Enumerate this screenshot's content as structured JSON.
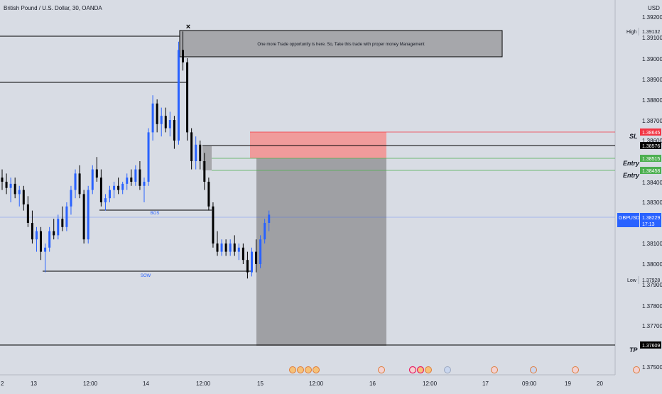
{
  "header": {
    "title": "British Pound / U.S. Dollar, 30, OANDA"
  },
  "price_axis": {
    "currency": "USD",
    "ticks": [
      "1.39200",
      "1.39100",
      "1.39000",
      "1.38900",
      "1.38800",
      "1.38700",
      "1.38600",
      "1.38400",
      "1.38300",
      "1.38100",
      "1.38000",
      "1.37900",
      "1.37800",
      "1.37700",
      "1.37500"
    ]
  },
  "time_axis": {
    "ticks": [
      "2",
      "13",
      "12:00",
      "14",
      "12:00",
      "15",
      "12:00",
      "16",
      "12:00",
      "17",
      "09:00",
      "19",
      "20"
    ]
  },
  "tags": {
    "high_label": "High",
    "high_value": "1.39132",
    "low_label": "Low",
    "low_value": "1.37928",
    "sl_value": "1.38645",
    "black_value": "1.38576",
    "entry1_value": "1.38515",
    "entry2_value": "1.38458",
    "symbol": "GBPUSD",
    "symbol_value": "1.38229",
    "countdown": "17:13",
    "tp_value": "1.37609"
  },
  "annotations": {
    "note": "One more Trade opportunity is here. So, Take this trade with proper money Management",
    "bos": "BOS",
    "sow": "SOW",
    "sl": "SL",
    "entry1": "Entry",
    "entry2": "Entry",
    "tp": "TP",
    "x_mark": "×"
  },
  "colors": {
    "background": "#d8dce4",
    "bull": "#2962ff",
    "bear": "#000000",
    "sl_zone": "#f28e8e",
    "target_zone": "#9e9fa3",
    "current_price": "#2962ff",
    "stop_tag": "#f23645",
    "entry_tag": "#4caf50"
  },
  "chart_data": {
    "type": "candlestick",
    "symbol": "GBPUSD",
    "price_range": [
      1.3745,
      1.3925
    ],
    "candles": [
      [
        1.3842,
        1.3846,
        1.3836,
        1.384
      ],
      [
        1.384,
        1.3844,
        1.3834,
        1.3837
      ],
      [
        1.3837,
        1.3842,
        1.383,
        1.3839
      ],
      [
        1.3839,
        1.3842,
        1.3832,
        1.3834
      ],
      [
        1.3834,
        1.3838,
        1.3828,
        1.3836
      ],
      [
        1.3836,
        1.3838,
        1.3826,
        1.3829
      ],
      [
        1.3829,
        1.3833,
        1.3818,
        1.382
      ],
      [
        1.382,
        1.3826,
        1.381,
        1.3812
      ],
      [
        1.3812,
        1.3818,
        1.3806,
        1.3816
      ],
      [
        1.3816,
        1.3818,
        1.3802,
        1.3806
      ],
      [
        1.3806,
        1.381,
        1.3796,
        1.3808
      ],
      [
        1.3808,
        1.3818,
        1.3806,
        1.3816
      ],
      [
        1.3816,
        1.3822,
        1.3812,
        1.3814
      ],
      [
        1.3814,
        1.3824,
        1.3812,
        1.3822
      ],
      [
        1.3822,
        1.3828,
        1.3816,
        1.3818
      ],
      [
        1.3818,
        1.383,
        1.3816,
        1.3828
      ],
      [
        1.3828,
        1.3838,
        1.3824,
        1.3836
      ],
      [
        1.3836,
        1.3846,
        1.3832,
        1.3844
      ],
      [
        1.3844,
        1.3848,
        1.3832,
        1.3834
      ],
      [
        1.3834,
        1.3836,
        1.381,
        1.3812
      ],
      [
        1.3812,
        1.3838,
        1.381,
        1.3836
      ],
      [
        1.3836,
        1.3848,
        1.3834,
        1.3846
      ],
      [
        1.3846,
        1.3852,
        1.384,
        1.3842
      ],
      [
        1.3842,
        1.3846,
        1.3828,
        1.383
      ],
      [
        1.383,
        1.3834,
        1.3826,
        1.3832
      ],
      [
        1.3832,
        1.3838,
        1.383,
        1.3836
      ],
      [
        1.3836,
        1.384,
        1.3832,
        1.3838
      ],
      [
        1.3838,
        1.3842,
        1.3834,
        1.3836
      ],
      [
        1.3836,
        1.384,
        1.3834,
        1.3839
      ],
      [
        1.3839,
        1.3844,
        1.3836,
        1.3842
      ],
      [
        1.3842,
        1.3846,
        1.3838,
        1.384
      ],
      [
        1.384,
        1.3848,
        1.3838,
        1.3846
      ],
      [
        1.3846,
        1.385,
        1.3836,
        1.3838
      ],
      [
        1.3838,
        1.3842,
        1.383,
        1.384
      ],
      [
        1.384,
        1.3866,
        1.3838,
        1.3864
      ],
      [
        1.3864,
        1.3882,
        1.386,
        1.3878
      ],
      [
        1.3878,
        1.388,
        1.3864,
        1.3868
      ],
      [
        1.3868,
        1.3876,
        1.3862,
        1.3872
      ],
      [
        1.3872,
        1.3876,
        1.3864,
        1.3866
      ],
      [
        1.3866,
        1.3874,
        1.3862,
        1.387
      ],
      [
        1.387,
        1.3872,
        1.3856,
        1.386
      ],
      [
        1.386,
        1.3908,
        1.3858,
        1.3904
      ],
      [
        1.3904,
        1.3913,
        1.3894,
        1.3898
      ],
      [
        1.3898,
        1.39,
        1.386,
        1.3864
      ],
      [
        1.3864,
        1.3866,
        1.3846,
        1.385
      ],
      [
        1.385,
        1.3862,
        1.3846,
        1.3858
      ],
      [
        1.3858,
        1.386,
        1.3846,
        1.385
      ],
      [
        1.385,
        1.3854,
        1.3836,
        1.384
      ],
      [
        1.384,
        1.3842,
        1.3826,
        1.3828
      ],
      [
        1.3828,
        1.383,
        1.3808,
        1.381
      ],
      [
        1.381,
        1.3816,
        1.3804,
        1.3806
      ],
      [
        1.3806,
        1.3812,
        1.3804,
        1.381
      ],
      [
        1.381,
        1.3812,
        1.3804,
        1.3806
      ],
      [
        1.3806,
        1.3812,
        1.3804,
        1.381
      ],
      [
        1.381,
        1.3814,
        1.3804,
        1.3806
      ],
      [
        1.3806,
        1.381,
        1.3802,
        1.3808
      ],
      [
        1.3808,
        1.381,
        1.38,
        1.3802
      ],
      [
        1.3802,
        1.3806,
        1.3793,
        1.3796
      ],
      [
        1.3796,
        1.3808,
        1.3794,
        1.3806
      ],
      [
        1.3806,
        1.3812,
        1.3796,
        1.38
      ],
      [
        1.38,
        1.3814,
        1.3798,
        1.3812
      ],
      [
        1.3812,
        1.3822,
        1.381,
        1.382
      ],
      [
        1.382,
        1.3826,
        1.3816,
        1.3824
      ]
    ],
    "levels": {
      "high": 1.39132,
      "stop_loss": 1.38645,
      "structure": 1.38576,
      "entry_1": 1.38515,
      "entry_2": 1.38458,
      "current": 1.38229,
      "low": 1.37928,
      "take_profit": 1.37609
    }
  }
}
